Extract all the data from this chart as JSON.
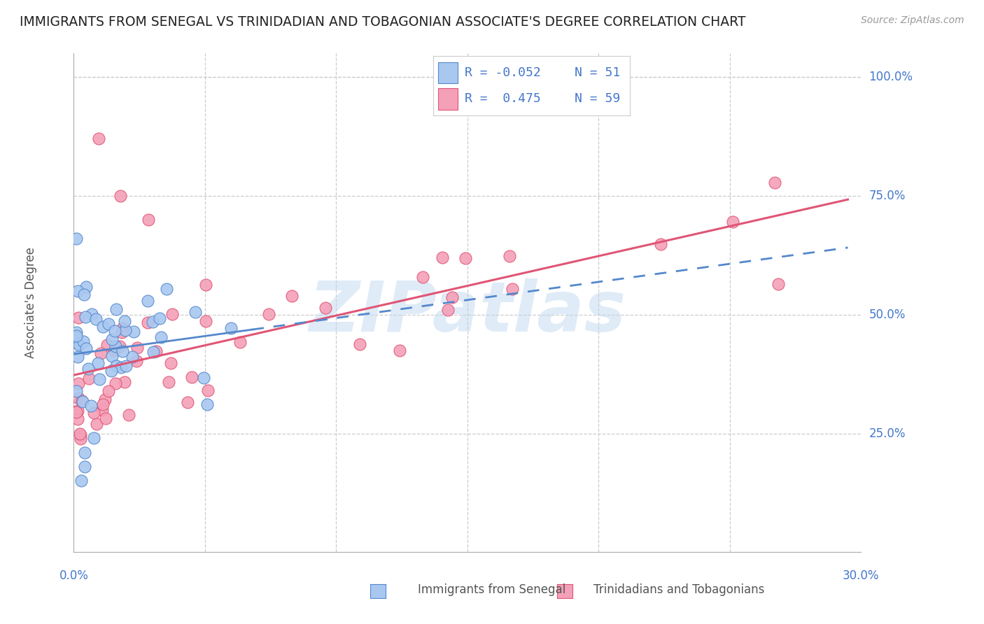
{
  "title": "IMMIGRANTS FROM SENEGAL VS TRINIDADIAN AND TOBAGONIAN ASSOCIATE'S DEGREE CORRELATION CHART",
  "source": "Source: ZipAtlas.com",
  "ylabel": "Associate's Degree",
  "color_blue": "#a8c8f0",
  "color_pink": "#f4a0b8",
  "line_blue": "#5588cc",
  "line_pink": "#e05575",
  "watermark": "ZIPatlas",
  "background_color": "#ffffff",
  "grid_color": "#cccccc",
  "xlim": [
    0.0,
    0.3
  ],
  "ylim": [
    0.0,
    1.05
  ],
  "ytick_values": [
    0.25,
    0.5,
    0.75,
    1.0
  ],
  "ytick_labels": [
    "25.0%",
    "50.0%",
    "75.0%",
    "100.0%"
  ],
  "xtick_left": "0.0%",
  "xtick_right": "30.0%",
  "legend_items": [
    {
      "color": "#a8c8f0",
      "edge": "#5588cc",
      "r": "R = -0.052",
      "n": "N = 51"
    },
    {
      "color": "#f4a0b8",
      "edge": "#e05575",
      "r": "R =  0.475",
      "n": "N = 59"
    }
  ]
}
